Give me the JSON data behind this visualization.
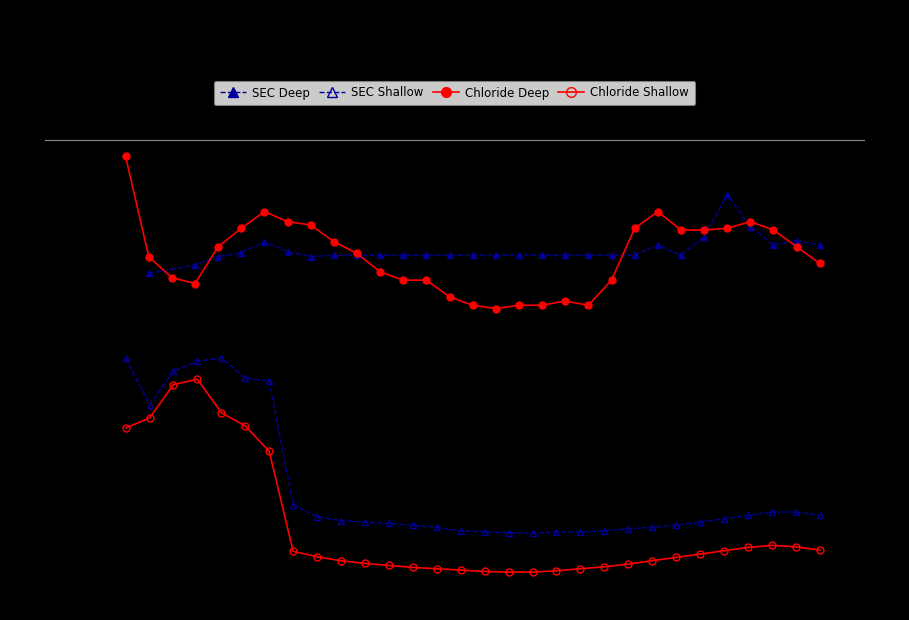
{
  "background_color": "#000000",
  "sec_deep_color": "#000099",
  "sec_shallow_color": "#000099",
  "chl_deep_color": "#FF0000",
  "chl_shallow_color": "#FF0000",
  "n_points": 31,
  "x": [
    0,
    1,
    2,
    3,
    4,
    5,
    6,
    7,
    8,
    9,
    10,
    11,
    12,
    13,
    14,
    15,
    16,
    17,
    18,
    19,
    20,
    21,
    22,
    23,
    24,
    25,
    26,
    27,
    28,
    29,
    30
  ],
  "upper_sec_deep": [
    null,
    630,
    null,
    640,
    650,
    655,
    668,
    656,
    650,
    652,
    652,
    652,
    652,
    652,
    652,
    652,
    652,
    652,
    652,
    652,
    652,
    652,
    652,
    664,
    652,
    674,
    724,
    686,
    664,
    669,
    664
  ],
  "upper_chl_deep": [
    770,
    650,
    625,
    618,
    662,
    684,
    704,
    692,
    688,
    668,
    654,
    632,
    622,
    622,
    602,
    592,
    588,
    592,
    592,
    597,
    592,
    622,
    684,
    704,
    682,
    682,
    684,
    692,
    682,
    662,
    642
  ],
  "lower_sec_shallow": [
    null,
    420,
    350,
    400,
    415,
    420,
    390,
    385,
    200,
    182,
    176,
    174,
    172,
    169,
    166,
    161,
    159,
    158,
    157,
    159,
    159,
    161,
    164,
    166,
    169,
    174,
    179,
    184,
    189,
    189,
    184
  ],
  "lower_chl_shallow": [
    null,
    315,
    330,
    380,
    388,
    338,
    318,
    280,
    130,
    122,
    116,
    112,
    109,
    106,
    104,
    102,
    100,
    99,
    99,
    101,
    104,
    107,
    111,
    116,
    121,
    126,
    131,
    136,
    139,
    137,
    132
  ],
  "figsize": [
    9.09,
    6.2
  ],
  "dpi": 100
}
